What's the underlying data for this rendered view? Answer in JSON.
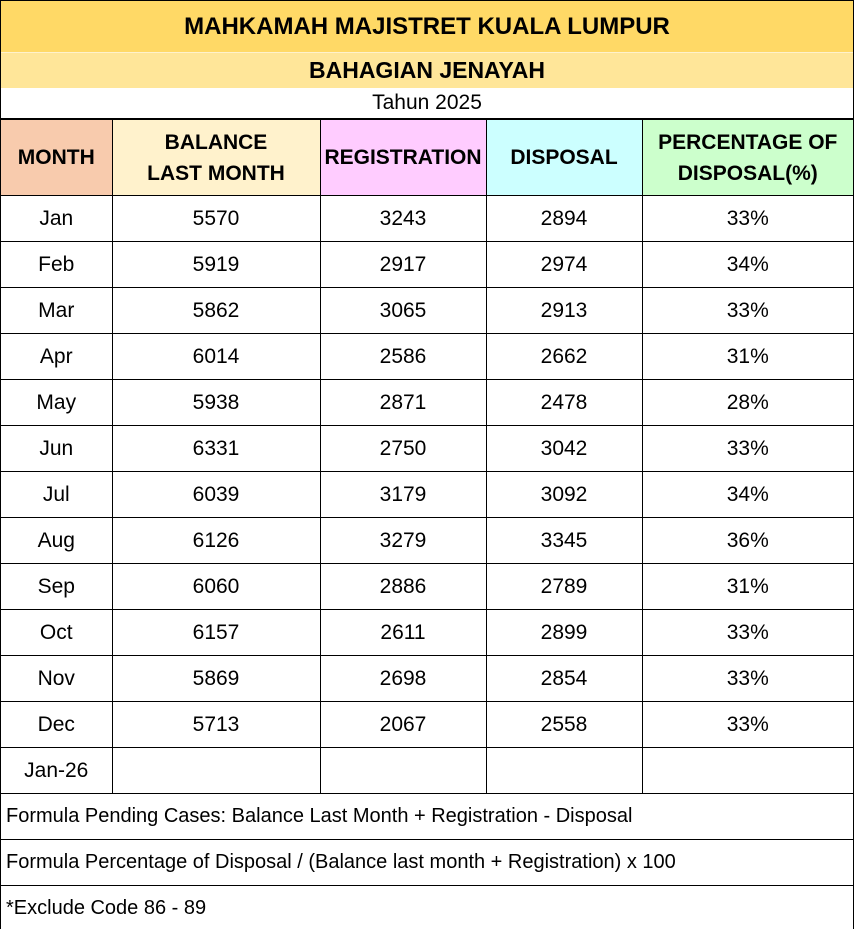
{
  "title": "MAHKAMAH MAJISTRET KUALA LUMPUR",
  "subtitle": "BAHAGIAN JENAYAH",
  "year_label": "Tahun 2025",
  "colors": {
    "title_bg": "#ffd966",
    "subtitle_bg": "#ffe699",
    "month_header": "#f8cbad",
    "balance_header": "#fff2cc",
    "registration_header": "#ffccff",
    "disposal_header": "#ccffff",
    "percentage_header": "#ccffcc"
  },
  "chart_data": {
    "type": "table",
    "columns": [
      "MONTH",
      "BALANCE LAST MONTH",
      "REGISTRATION",
      "DISPOSAL",
      "PERCENTAGE OF DISPOSAL(%)"
    ],
    "rows": [
      [
        "Jan",
        "5570",
        "3243",
        "2894",
        "33%"
      ],
      [
        "Feb",
        "5919",
        "2917",
        "2974",
        "34%"
      ],
      [
        "Mar",
        "5862",
        "3065",
        "2913",
        "33%"
      ],
      [
        "Apr",
        "6014",
        "2586",
        "2662",
        "31%"
      ],
      [
        "May",
        "5938",
        "2871",
        "2478",
        "28%"
      ],
      [
        "Jun",
        "6331",
        "2750",
        "3042",
        "33%"
      ],
      [
        "Jul",
        "6039",
        "3179",
        "3092",
        "34%"
      ],
      [
        "Aug",
        "6126",
        "3279",
        "3345",
        "36%"
      ],
      [
        "Sep",
        "6060",
        "2886",
        "2789",
        "31%"
      ],
      [
        "Oct",
        "6157",
        "2611",
        "2899",
        "33%"
      ],
      [
        "Nov",
        "5869",
        "2698",
        "2854",
        "33%"
      ],
      [
        "Dec",
        "5713",
        "2067",
        "2558",
        "33%"
      ],
      [
        "Jan-26",
        "",
        "",
        "",
        ""
      ]
    ]
  },
  "notes": [
    "Formula Pending Cases: Balance Last Month + Registration - Disposal",
    "Formula Percentage of Disposal / (Balance last month + Registration) x 100",
    "*Exclude Code 86 - 89"
  ]
}
